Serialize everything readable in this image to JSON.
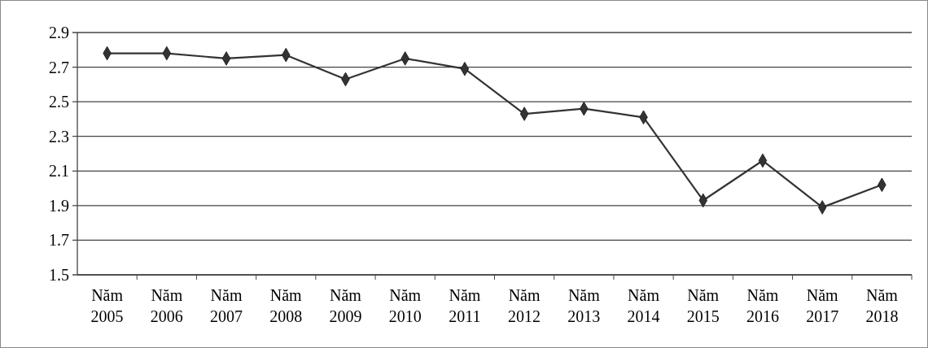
{
  "chart_data": {
    "type": "line",
    "categories": [
      "Năm 2005",
      "Năm 2006",
      "Năm 2007",
      "Năm 2008",
      "Năm 2009",
      "Năm 2010",
      "Năm 2011",
      "Năm 2012",
      "Năm 2013",
      "Năm 2014",
      "Năm 2015",
      "Năm 2016",
      "Năm 2017",
      "Năm 2018"
    ],
    "series": [
      {
        "color": "#333333",
        "values": [
          2.78,
          2.78,
          2.75,
          2.77,
          2.63,
          2.75,
          2.69,
          2.43,
          2.46,
          2.41,
          1.93,
          2.16,
          1.89,
          2.02
        ]
      }
    ],
    "ylim": [
      1.5,
      2.9
    ],
    "yticks": [
      {
        "value": 1.5,
        "label": "1.5"
      },
      {
        "value": 1.7,
        "label": "1.7"
      },
      {
        "value": 1.9,
        "label": "1.9"
      },
      {
        "value": 2.1,
        "label": "2.1"
      },
      {
        "value": 2.3,
        "label": "2.3"
      },
      {
        "value": 2.5,
        "label": "2.5"
      },
      {
        "value": 2.7,
        "label": "2.7"
      },
      {
        "value": 2.9,
        "label": "2.9"
      }
    ],
    "grid": "y",
    "marker": "diamond",
    "line_style": "solid"
  }
}
